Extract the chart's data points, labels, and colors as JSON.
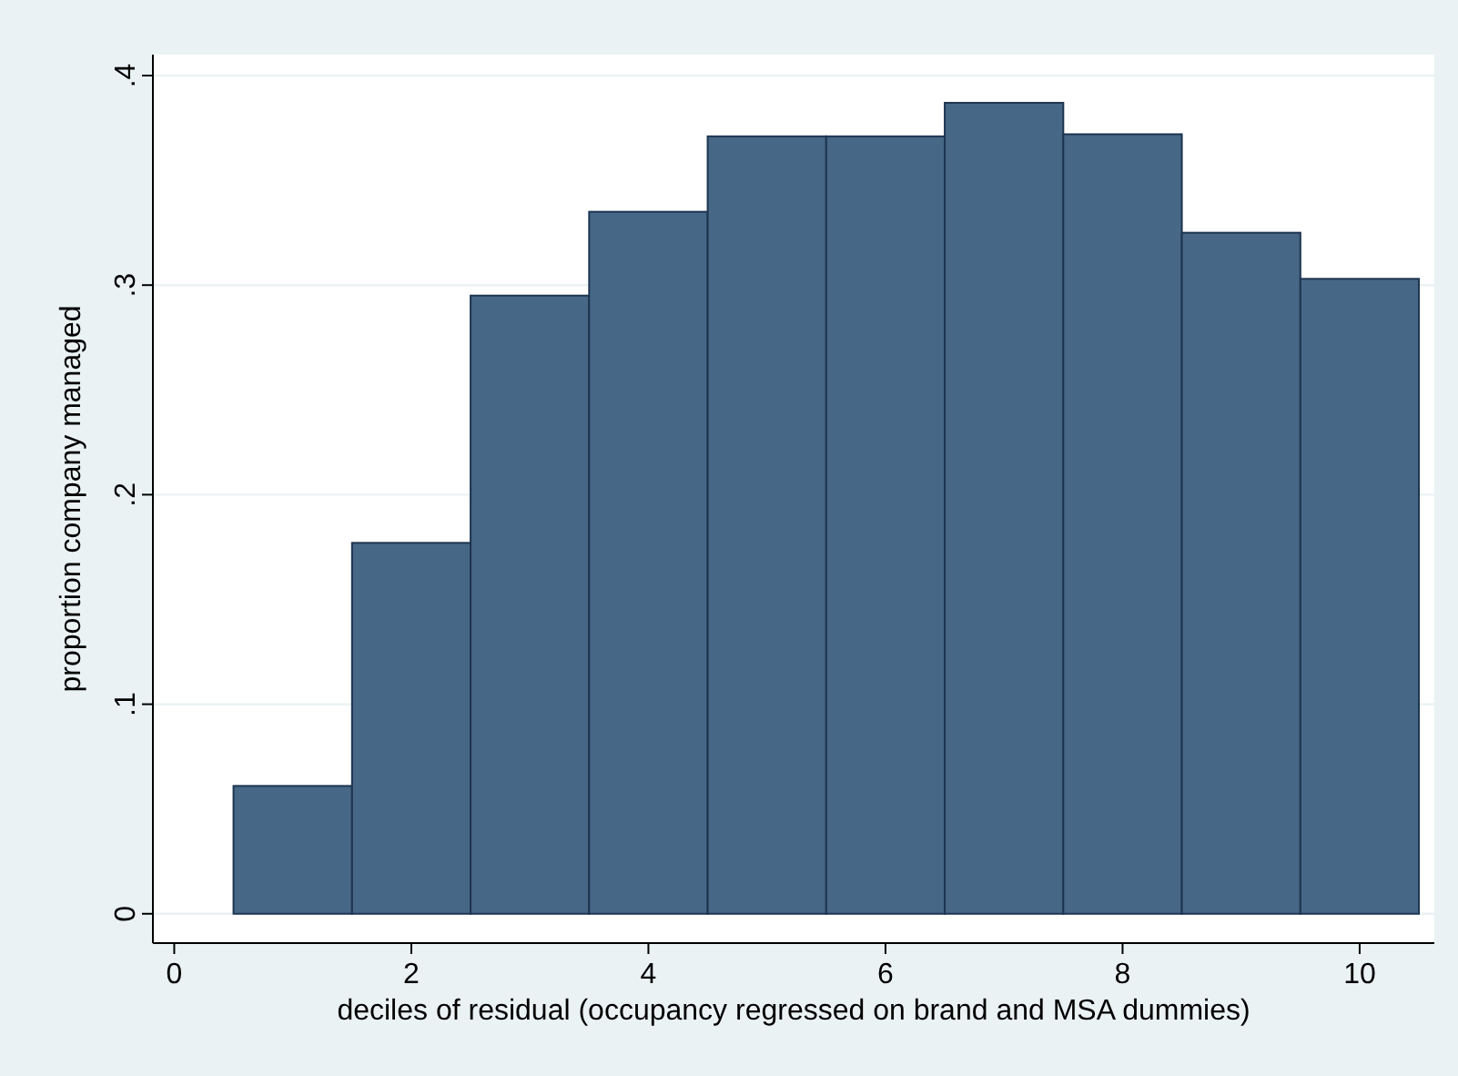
{
  "chart_data": {
    "type": "histogram",
    "xlabel": "deciles of residual (occupancy regressed on brand and MSA dummies)",
    "ylabel": "proportion company managed",
    "bins": [
      0.5,
      1.5,
      2.5,
      3.5,
      4.5,
      5.5,
      6.5,
      7.5,
      8.5,
      9.5,
      10.5
    ],
    "values": [
      0.061,
      0.177,
      0.295,
      0.335,
      0.371,
      0.371,
      0.387,
      0.372,
      0.325,
      0.303
    ],
    "color": "#476786",
    "xlim": [
      -0.18,
      10.63
    ],
    "xticks": [
      0,
      2,
      4,
      6,
      8,
      10
    ],
    "ylim": [
      -0.014,
      0.41
    ],
    "yticks": [
      {
        "value": 0,
        "label": "0"
      },
      {
        "value": 0.1,
        "label": ".1"
      },
      {
        "value": 0.2,
        "label": ".2"
      },
      {
        "value": 0.3,
        "label": ".3"
      },
      {
        "value": 0.4,
        "label": ".4"
      }
    ],
    "grid": "y"
  }
}
